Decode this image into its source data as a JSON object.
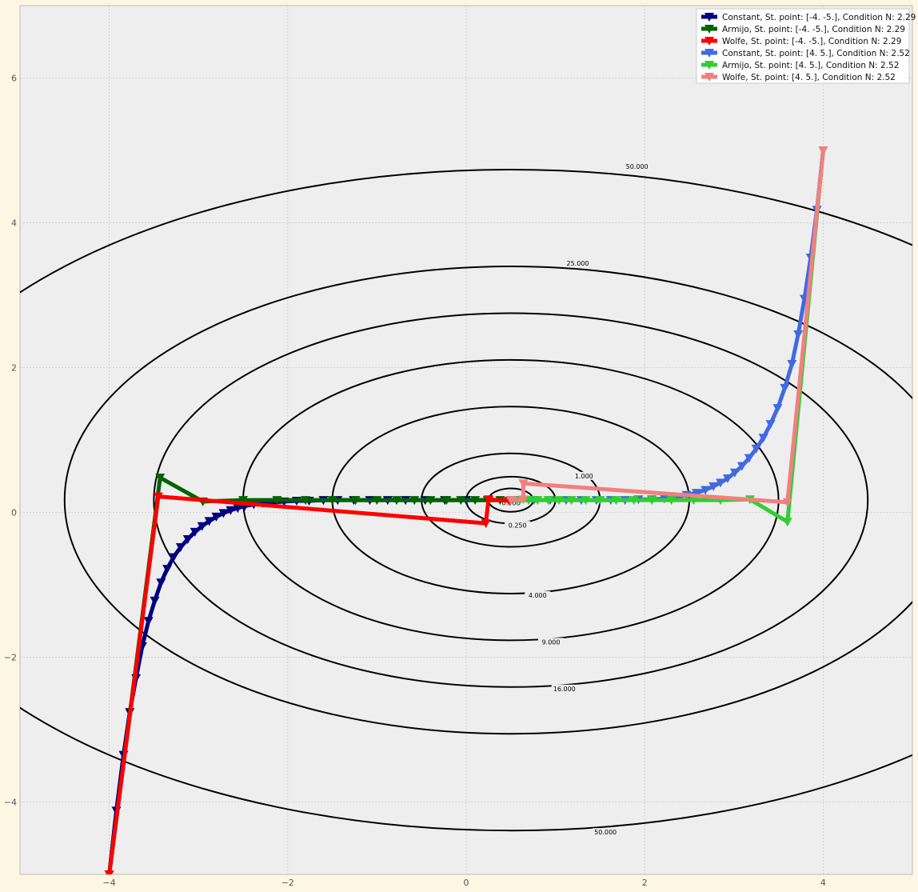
{
  "chart_data": {
    "type": "line",
    "title": "",
    "xlabel": "",
    "ylabel": "",
    "xlim": [
      -5,
      5
    ],
    "ylim": [
      -5,
      7
    ],
    "x_ticks": [
      -4,
      -2,
      0,
      2,
      4
    ],
    "x_tick_labels": [
      "−4",
      "−2",
      "0",
      "2",
      "4"
    ],
    "y_ticks": [
      -4,
      -2,
      0,
      2,
      4,
      6
    ],
    "y_tick_labels": [
      "−4",
      "−2",
      "0",
      "2",
      "4",
      "6"
    ],
    "grid": true,
    "legend_position": "top-right",
    "contours": {
      "center": [
        0.5,
        0.17
      ],
      "x_scale": 1.0,
      "y_scale": 2.4,
      "levels": [
        {
          "level": 0.0,
          "label": "0.000"
        },
        {
          "level": 0.0625,
          "label": ""
        },
        {
          "level": 0.25,
          "label": "0.250"
        },
        {
          "level": 1.0,
          "label": "1.000"
        },
        {
          "level": 4.0,
          "label": "4.000"
        },
        {
          "level": 9.0,
          "label": "9.000"
        },
        {
          "level": 16.0,
          "label": "16.000"
        },
        {
          "level": 25.0,
          "label": "25.000"
        },
        {
          "level": 50.0,
          "label": "50.000"
        }
      ]
    },
    "series": [
      {
        "name": "Constant, St. point: [-4. -5.], Condition N: 2.29",
        "color": "#000080",
        "marker": "triangle-down",
        "points": [
          [
            -4.0,
            -5.0
          ],
          [
            -3.92,
            -4.12
          ],
          [
            -3.84,
            -3.35
          ],
          [
            -3.77,
            -2.76
          ],
          [
            -3.7,
            -2.29
          ],
          [
            -3.63,
            -1.85
          ],
          [
            -3.56,
            -1.5
          ],
          [
            -3.49,
            -1.22
          ],
          [
            -3.42,
            -0.97
          ],
          [
            -3.35,
            -0.78
          ],
          [
            -3.28,
            -0.62
          ],
          [
            -3.2,
            -0.48
          ],
          [
            -3.12,
            -0.37
          ],
          [
            -3.04,
            -0.27
          ],
          [
            -2.96,
            -0.19
          ],
          [
            -2.88,
            -0.12
          ],
          [
            -2.8,
            -0.06
          ],
          [
            -2.72,
            -0.01
          ],
          [
            -2.64,
            0.03
          ],
          [
            -2.56,
            0.06
          ],
          [
            -2.48,
            0.09
          ],
          [
            -2.38,
            0.11
          ],
          [
            -2.28,
            0.13
          ],
          [
            -2.16,
            0.14
          ],
          [
            -2.04,
            0.15
          ],
          [
            -1.9,
            0.16
          ],
          [
            -1.76,
            0.16
          ],
          [
            -1.6,
            0.17
          ],
          [
            -1.44,
            0.17
          ],
          [
            -1.26,
            0.17
          ],
          [
            -1.08,
            0.17
          ],
          [
            -0.88,
            0.17
          ],
          [
            -0.68,
            0.17
          ],
          [
            -0.46,
            0.17
          ],
          [
            -0.24,
            0.17
          ],
          [
            0.0,
            0.17
          ],
          [
            0.25,
            0.17
          ],
          [
            0.5,
            0.17
          ]
        ]
      },
      {
        "name": "Armijo, St. point: [-4. -5.], Condition N: 2.29",
        "color": "#006400",
        "marker": "triangle-down",
        "points": [
          [
            -4.0,
            -5.0
          ],
          [
            -3.43,
            0.48
          ],
          [
            -2.95,
            0.15
          ],
          [
            -2.5,
            0.17
          ],
          [
            -2.12,
            0.17
          ],
          [
            -1.8,
            0.17
          ],
          [
            -1.5,
            0.17
          ],
          [
            -1.24,
            0.17
          ],
          [
            -1.0,
            0.17
          ],
          [
            -0.78,
            0.17
          ],
          [
            -0.58,
            0.17
          ],
          [
            -0.4,
            0.17
          ],
          [
            -0.22,
            0.17
          ],
          [
            -0.06,
            0.17
          ],
          [
            0.1,
            0.17
          ],
          [
            0.24,
            0.17
          ],
          [
            0.38,
            0.17
          ],
          [
            0.5,
            0.17
          ]
        ]
      },
      {
        "name": "Wolfe, St. point: [-4. -5.], Condition N: 2.29",
        "color": "#ff0000",
        "marker": "triangle-down",
        "points": [
          [
            -4.0,
            -5.0
          ],
          [
            -3.45,
            0.22
          ],
          [
            0.22,
            -0.15
          ],
          [
            0.25,
            0.18
          ],
          [
            0.48,
            0.16
          ]
        ]
      },
      {
        "name": "Constant, St. point: [4. 5.], Condition N: 2.52",
        "color": "#4169e1",
        "marker": "triangle-down",
        "points": [
          [
            4.0,
            5.0
          ],
          [
            3.93,
            4.18
          ],
          [
            3.86,
            3.52
          ],
          [
            3.79,
            2.95
          ],
          [
            3.72,
            2.46
          ],
          [
            3.65,
            2.05
          ],
          [
            3.57,
            1.72
          ],
          [
            3.49,
            1.44
          ],
          [
            3.41,
            1.22
          ],
          [
            3.33,
            1.03
          ],
          [
            3.25,
            0.88
          ],
          [
            3.17,
            0.75
          ],
          [
            3.09,
            0.64
          ],
          [
            3.01,
            0.55
          ],
          [
            2.93,
            0.47
          ],
          [
            2.85,
            0.41
          ],
          [
            2.77,
            0.36
          ],
          [
            2.68,
            0.31
          ],
          [
            2.58,
            0.27
          ],
          [
            2.47,
            0.24
          ],
          [
            2.35,
            0.21
          ],
          [
            2.22,
            0.19
          ],
          [
            2.08,
            0.18
          ],
          [
            1.93,
            0.18
          ],
          [
            1.78,
            0.17
          ],
          [
            1.62,
            0.17
          ],
          [
            1.46,
            0.17
          ],
          [
            1.29,
            0.17
          ],
          [
            1.12,
            0.17
          ],
          [
            0.94,
            0.17
          ],
          [
            0.76,
            0.17
          ],
          [
            0.6,
            0.17
          ],
          [
            0.5,
            0.17
          ]
        ]
      },
      {
        "name": "Armijo, St. point: [4. 5.], Condition N: 2.52",
        "color": "#32cd32",
        "marker": "triangle-down",
        "points": [
          [
            4.0,
            5.0
          ],
          [
            3.6,
            -0.13
          ],
          [
            3.18,
            0.18
          ],
          [
            2.85,
            0.17
          ],
          [
            2.55,
            0.17
          ],
          [
            2.3,
            0.17
          ],
          [
            2.08,
            0.17
          ],
          [
            1.88,
            0.17
          ],
          [
            1.68,
            0.17
          ],
          [
            1.5,
            0.17
          ],
          [
            1.34,
            0.17
          ],
          [
            1.18,
            0.17
          ],
          [
            1.04,
            0.17
          ],
          [
            0.92,
            0.17
          ],
          [
            0.8,
            0.17
          ],
          [
            0.7,
            0.17
          ],
          [
            0.6,
            0.17
          ],
          [
            0.5,
            0.17
          ]
        ]
      },
      {
        "name": "Wolfe, St. point: [4. 5.], Condition N: 2.52",
        "color": "#f08080",
        "marker": "triangle-down",
        "points": [
          [
            4.0,
            5.0
          ],
          [
            3.6,
            0.14
          ],
          [
            0.64,
            0.4
          ],
          [
            0.64,
            0.18
          ],
          [
            0.5,
            0.17
          ]
        ]
      }
    ]
  }
}
